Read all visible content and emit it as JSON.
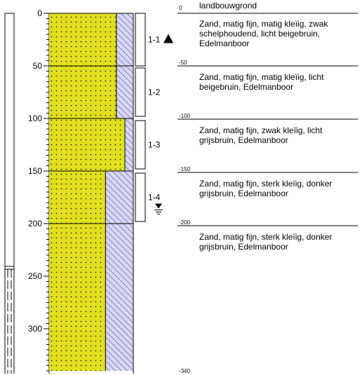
{
  "colors": {
    "sand": "#e2e01e",
    "clay_hatch": "#8a8ad6",
    "clay_bg": "#d8d8f2",
    "line": "#000000"
  },
  "depth_axis": {
    "ticks": [
      "0",
      "50",
      "100",
      "150",
      "200",
      "250",
      "300"
    ]
  },
  "samples": [
    {
      "label": "1-1",
      "top": 0,
      "bottom": 50
    },
    {
      "label": "1-2",
      "top": 52,
      "bottom": 98
    },
    {
      "label": "1-3",
      "top": 102,
      "bottom": 148
    },
    {
      "label": "1-4",
      "top": 152,
      "bottom": 198
    }
  ],
  "markers": [
    {
      "icon": "triangle-up-icon",
      "depth": 25
    },
    {
      "icon": "groundwater-level-icon",
      "depth": 185
    }
  ],
  "layers": [
    {
      "top": 0,
      "bottom": 50,
      "clay_fraction": 0.2
    },
    {
      "top": 50,
      "bottom": 100,
      "clay_fraction": 0.2
    },
    {
      "top": 100,
      "bottom": 150,
      "clay_fraction": 0.1
    },
    {
      "top": 150,
      "bottom": 200,
      "clay_fraction": 0.33
    },
    {
      "top": 200,
      "bottom": 340,
      "clay_fraction": 0.33
    }
  ],
  "casing": {
    "solid_bottom": 250
  },
  "depth_labels": [
    "0",
    "-50",
    "-100",
    "-150",
    "-200",
    "-340"
  ],
  "descriptions": [
    "landbouwgrond",
    "Zand, matig fijn, matig kleïig, zwak schelphoudend, licht beigebruin, Edelmanboor",
    "Zand, matig fijn, matig kleïig, licht beigebruin, Edelmanboor",
    "Zand, matig fijn, zwak kleïig, licht grijsbruin, Edelmanboor",
    "Zand, matig fijn, sterk kleïig, donker grijsbruin, Edelmanboor",
    "Zand, matig fijn, sterk kleïig, donker grijsbruin, Edelmanboor"
  ]
}
